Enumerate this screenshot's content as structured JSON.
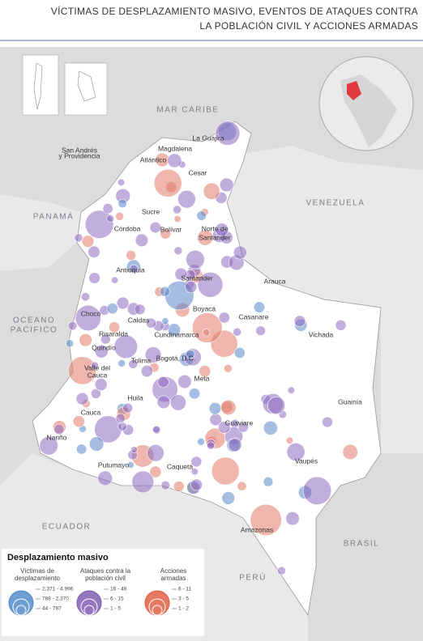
{
  "header": {
    "title": [
      "VÍCTIMAS DE DESPLAZAMIENTO MASIVO, EVENTOS DE ATAQUES CONTRA",
      "LA POBLACIÓN CIVIL Y ACCIONES ARMADAS"
    ]
  },
  "map": {
    "seas": [
      "MAR CARIBE",
      "VENEZUELA",
      "PANAMÁ",
      "OCEANO",
      "PACIFICO",
      "ECUADOR",
      "BRASIL",
      "PERÚ"
    ],
    "places": [
      "San Andrés",
      "y Providencia",
      "La Guajira",
      "Magdalena",
      "Atlántico",
      "Cesar",
      "Sucre",
      "Córdoba",
      "Bolívar",
      "Norte de",
      "Santander",
      "Antioquia",
      "Santander",
      "Arauca",
      "Chocó",
      "Boyacá",
      "Casanare",
      "Caldas",
      "Risaralda",
      "Cundinamarca",
      "Vichada",
      "Quindío",
      "Tolima",
      "Bogotá, D.C.",
      "Valle del",
      "Cauca",
      "Meta",
      "Huila",
      "Guainía",
      "Cauca",
      "Guaviare",
      "Nariño",
      "Vaupés",
      "Putumayo",
      "Caquetá",
      "Amazonas"
    ]
  },
  "legend": {
    "title": "Desplazamiento masivo",
    "groups": [
      {
        "title": [
          "Víctimas de",
          "desplazamiento"
        ],
        "items": [
          "2.371 - 4.996",
          "788 - 2.370",
          "44 - 787"
        ]
      },
      {
        "title": [
          "Ataques contra la",
          "población civil"
        ],
        "items": [
          "16 - 48",
          "6 - 15",
          "1 - 5"
        ]
      },
      {
        "title": [
          "Acciones",
          "armadas"
        ],
        "items": [
          "6 - 11",
          "3 - 5",
          "1 - 2"
        ]
      }
    ]
  }
}
